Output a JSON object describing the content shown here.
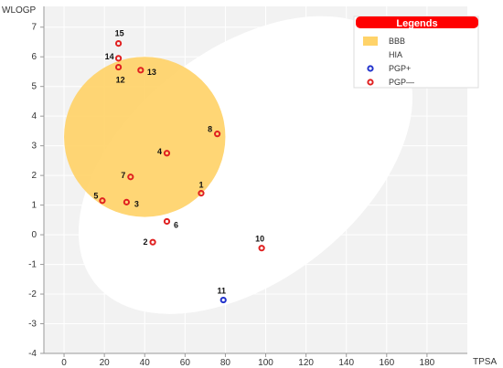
{
  "chart_data": {
    "type": "scatter",
    "ylabel": "WLOGP",
    "xlabel": "TPSA",
    "xlim": [
      -10,
      200
    ],
    "ylim": [
      -4,
      7.7
    ],
    "x_ticks": [
      0,
      20,
      40,
      60,
      80,
      100,
      120,
      140,
      160,
      180
    ],
    "y_ticks": [
      -4,
      -3,
      -2,
      -1,
      0,
      1,
      2,
      3,
      4,
      5,
      6,
      7
    ],
    "grid": true,
    "legend": {
      "title": "Legends",
      "placement": "top-right",
      "entries": [
        {
          "label": "BBB",
          "marker": "box",
          "color": "#ffd369"
        },
        {
          "label": "HIA",
          "marker": "box",
          "color": "#ffffff"
        },
        {
          "label": "PGP+",
          "marker": "circle",
          "color": "#2233cc"
        },
        {
          "label": "PGP—",
          "marker": "circle",
          "color": "#e02020"
        }
      ]
    },
    "regions": [
      {
        "label": "HIA",
        "cx": 90,
        "cy": 2.35,
        "rx": 95,
        "ry": 3.9,
        "angle_deg": -38,
        "color": "#ffffff"
      },
      {
        "label": "BBB",
        "cx": 40,
        "cy": 3.3,
        "rx": 40,
        "ry": 2.7,
        "angle_deg": 0,
        "color": "#ffd369"
      }
    ],
    "points": [
      {
        "label": "1",
        "x": 68,
        "y": 1.4,
        "group": "PGP-"
      },
      {
        "label": "2",
        "x": 44,
        "y": -0.25,
        "group": "PGP-"
      },
      {
        "label": "3",
        "x": 31,
        "y": 1.1,
        "group": "PGP-"
      },
      {
        "label": "4",
        "x": 51,
        "y": 2.75,
        "group": "PGP-"
      },
      {
        "label": "5",
        "x": 19,
        "y": 1.15,
        "group": "PGP-"
      },
      {
        "label": "6",
        "x": 51,
        "y": 0.45,
        "group": "PGP-"
      },
      {
        "label": "7",
        "x": 33,
        "y": 1.95,
        "group": "PGP-"
      },
      {
        "label": "8",
        "x": 76,
        "y": 3.4,
        "group": "PGP-"
      },
      {
        "label": "10",
        "x": 98,
        "y": -0.45,
        "group": "PGP-"
      },
      {
        "label": "11",
        "x": 79,
        "y": -2.2,
        "group": "PGP+"
      },
      {
        "label": "12",
        "x": 27,
        "y": 5.65,
        "group": "PGP-"
      },
      {
        "label": "13",
        "x": 38,
        "y": 5.55,
        "group": "PGP-"
      },
      {
        "label": "14",
        "x": 27,
        "y": 5.95,
        "group": "PGP-"
      },
      {
        "label": "15",
        "x": 27,
        "y": 6.45,
        "group": "PGP-"
      }
    ],
    "colors": {
      "PGP+": "#2233cc",
      "PGP-": "#e02020"
    }
  }
}
